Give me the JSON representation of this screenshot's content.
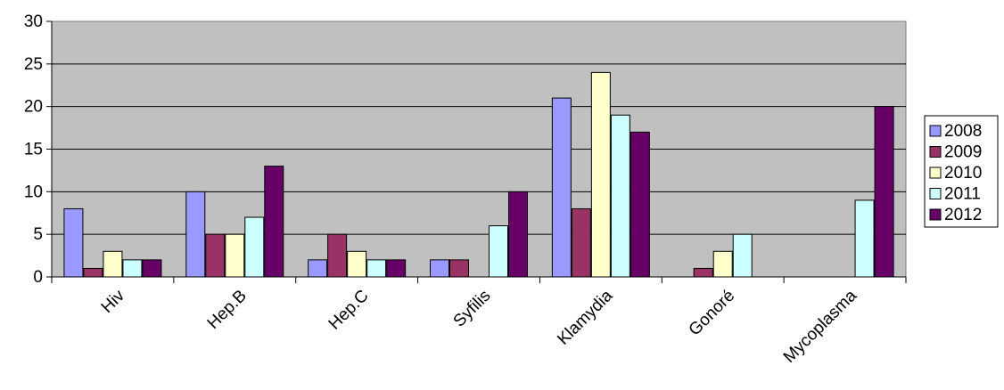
{
  "chart_data": {
    "type": "bar",
    "categories": [
      "Hiv",
      "Hep.B",
      "Hep.C",
      "Syfilis",
      "Klamydia",
      "Gonoré",
      "Mycoplasma"
    ],
    "series": [
      {
        "name": "2008",
        "color": "#9999ff",
        "values": [
          8,
          10,
          2,
          2,
          21,
          0,
          0
        ]
      },
      {
        "name": "2009",
        "color": "#993366",
        "values": [
          1,
          5,
          5,
          2,
          8,
          1,
          0
        ]
      },
      {
        "name": "2010",
        "color": "#ffffcc",
        "values": [
          3,
          5,
          3,
          0,
          24,
          3,
          0
        ]
      },
      {
        "name": "2011",
        "color": "#ccffff",
        "values": [
          2,
          7,
          2,
          6,
          19,
          5,
          9
        ]
      },
      {
        "name": "2012",
        "color": "#660066",
        "values": [
          2,
          13,
          2,
          10,
          17,
          0,
          20
        ]
      }
    ],
    "ylim": [
      0,
      30
    ],
    "yticks": [
      0,
      5,
      10,
      15,
      20,
      25,
      30
    ],
    "grid": true,
    "legend": "right",
    "plot_background": "#c0c0c0"
  }
}
